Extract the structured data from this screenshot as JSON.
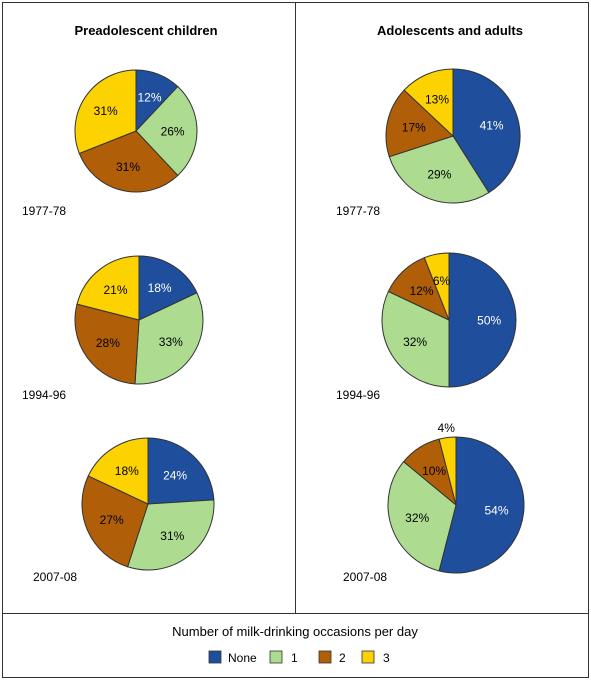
{
  "colors": {
    "None": "#1f4e9c",
    "1": "#addc91",
    "2": "#b05f08",
    "3": "#fcd200",
    "border": "#333333"
  },
  "legend": {
    "title": "Number of milk-drinking occasions per day",
    "items": [
      {
        "label": "None",
        "key": "None"
      },
      {
        "label": "1",
        "key": "1"
      },
      {
        "label": "2",
        "key": "2"
      },
      {
        "label": "3",
        "key": "3"
      }
    ]
  },
  "chart_data": [
    {
      "type": "pie",
      "group": "Preadolescent children",
      "period": "1977-78",
      "categories": [
        "None",
        "1",
        "2",
        "3"
      ],
      "values": [
        12,
        26,
        31,
        31
      ]
    },
    {
      "type": "pie",
      "group": "Preadolescent children",
      "period": "1994-96",
      "categories": [
        "None",
        "1",
        "2",
        "3"
      ],
      "values": [
        18,
        33,
        28,
        21
      ]
    },
    {
      "type": "pie",
      "group": "Preadolescent children",
      "period": "2007-08",
      "categories": [
        "None",
        "1",
        "2",
        "3"
      ],
      "values": [
        24,
        31,
        27,
        18
      ]
    },
    {
      "type": "pie",
      "group": "Adolescents and adults",
      "period": "1977-78",
      "categories": [
        "None",
        "1",
        "2",
        "3"
      ],
      "values": [
        41,
        29,
        17,
        13
      ]
    },
    {
      "type": "pie",
      "group": "Adolescents and adults",
      "period": "1994-96",
      "categories": [
        "None",
        "1",
        "2",
        "3"
      ],
      "values": [
        50,
        32,
        12,
        6
      ]
    },
    {
      "type": "pie",
      "group": "Adolescents and adults",
      "period": "2007-08",
      "categories": [
        "None",
        "1",
        "2",
        "3"
      ],
      "values": [
        54,
        32,
        10,
        4
      ]
    }
  ]
}
